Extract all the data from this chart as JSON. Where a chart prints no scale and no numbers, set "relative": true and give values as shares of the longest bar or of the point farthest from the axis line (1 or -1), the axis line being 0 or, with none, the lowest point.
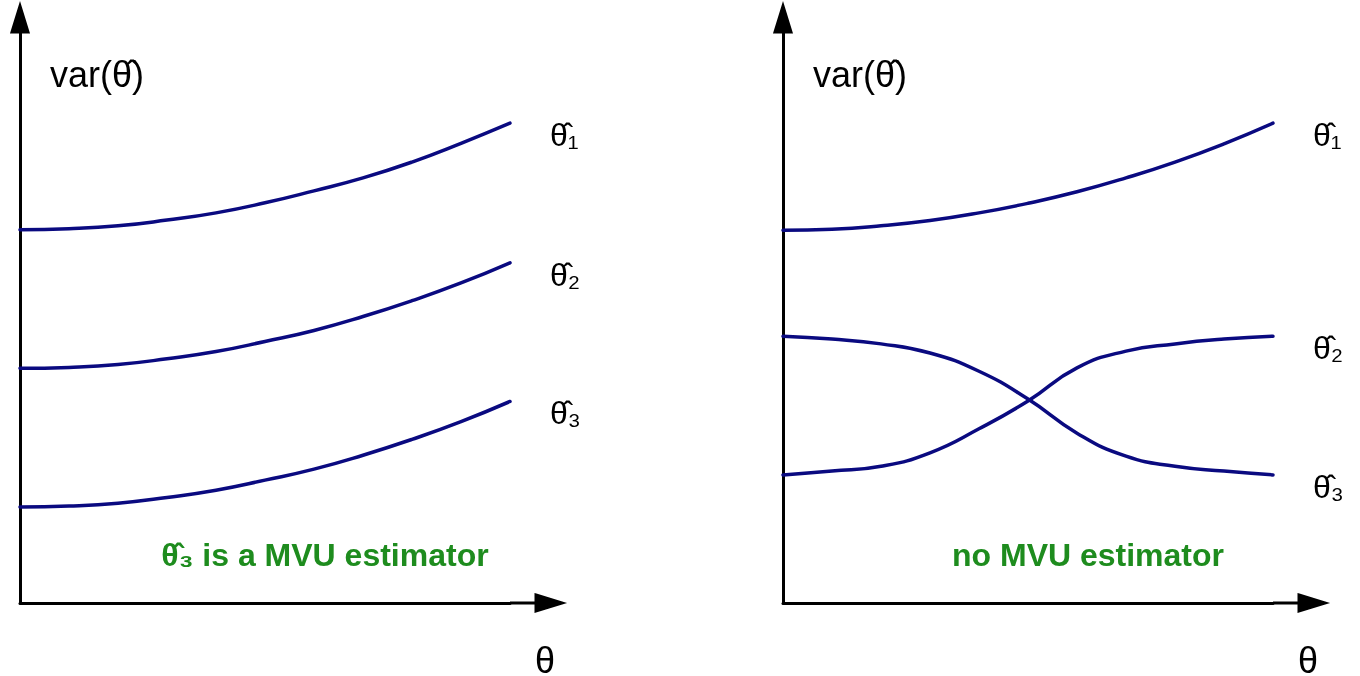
{
  "chart_data": [
    {
      "type": "line",
      "relative": true,
      "marker": "none",
      "ylabel": "var(θ̂)",
      "xlabel": "θ",
      "annotations": [
        "θ̂₃ is a MVU estimator"
      ],
      "categories": [
        null,
        null,
        null,
        null,
        null,
        null,
        null,
        null,
        null,
        null,
        null
      ],
      "series": [
        {
          "name": "θ̂₁",
          "color": "#0a0a80",
          "values": [
            0.778,
            0.78,
            0.786,
            0.798,
            0.813,
            0.834,
            0.859,
            0.886,
            0.919,
            0.958,
            1
          ]
        },
        {
          "name": "θ̂₂",
          "color": "#0a0a80",
          "values": [
            0.489,
            0.491,
            0.497,
            0.509,
            0.524,
            0.545,
            0.568,
            0.597,
            0.63,
            0.667,
            0.709
          ]
        },
        {
          "name": "θ̂₃",
          "color": "#0a0a80",
          "values": [
            0.2,
            0.202,
            0.208,
            0.22,
            0.235,
            0.256,
            0.279,
            0.308,
            0.341,
            0.378,
            0.42
          ]
        }
      ]
    },
    {
      "type": "line",
      "relative": true,
      "marker": "none",
      "ylabel": "var(θ̂)",
      "xlabel": "θ",
      "annotations": [
        "no MVU estimator"
      ],
      "categories": [
        null,
        null,
        null,
        null,
        null,
        null,
        null,
        null,
        null,
        null,
        null
      ],
      "series": [
        {
          "name": "θ̂₁",
          "color": "#0a0a80",
          "values": [
            0.777,
            0.779,
            0.786,
            0.797,
            0.813,
            0.833,
            0.857,
            0.886,
            0.919,
            0.957,
            1
          ]
        },
        {
          "name": "θ̂₂",
          "color": "#0a0a80",
          "values": [
            0.267,
            0.275,
            0.285,
            0.313,
            0.363,
            0.421,
            0.49,
            0.525,
            0.54,
            0.55,
            0.556
          ]
        },
        {
          "name": "θ̂₃",
          "color": "#0a0a80",
          "values": [
            0.556,
            0.55,
            0.54,
            0.521,
            0.483,
            0.425,
            0.354,
            0.306,
            0.285,
            0.275,
            0.267
          ]
        }
      ]
    }
  ]
}
